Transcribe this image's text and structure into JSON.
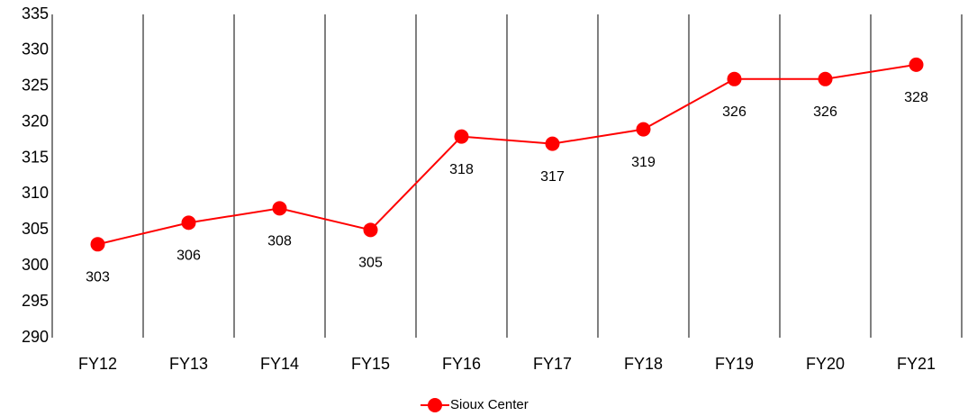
{
  "chart_data": {
    "type": "line",
    "categories": [
      "FY12",
      "FY13",
      "FY14",
      "FY15",
      "FY16",
      "FY17",
      "FY18",
      "FY19",
      "FY20",
      "FY21"
    ],
    "series": [
      {
        "name": "Sioux Center",
        "color": "#ff0000",
        "values": [
          303,
          306,
          308,
          305,
          318,
          317,
          319,
          326,
          326,
          328
        ]
      }
    ],
    "ylim": [
      290,
      335
    ],
    "yticks": [
      290,
      295,
      300,
      305,
      310,
      315,
      320,
      325,
      330,
      335
    ],
    "legend": "bottom"
  }
}
